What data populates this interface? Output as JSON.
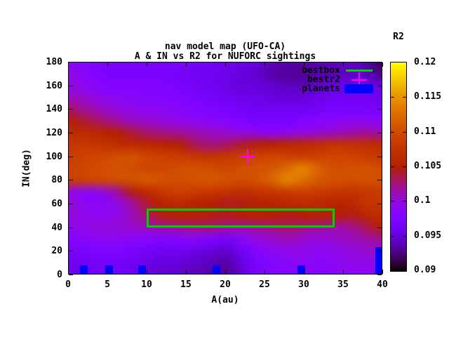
{
  "titles": {
    "line1": "nav model map (UFO-CA)",
    "line2": "A & IN vs R2 for NUFORC sightings"
  },
  "axes": {
    "x_label": "A(au)",
    "y_label": "IN(deg)",
    "x_range": [
      0,
      40
    ],
    "y_range": [
      0,
      180
    ],
    "x_ticks": [
      0,
      5,
      10,
      15,
      20,
      25,
      30,
      35,
      40
    ],
    "y_ticks": [
      0,
      20,
      40,
      60,
      80,
      100,
      120,
      140,
      160,
      180
    ]
  },
  "colorbar": {
    "title": "R2",
    "range": [
      0.09,
      0.12
    ],
    "tick_labels": [
      "0.12",
      "0.115",
      "0.11",
      "0.105",
      "0.1",
      "0.095",
      "0.09"
    ],
    "tick_values": [
      0.12,
      0.115,
      0.11,
      0.105,
      0.1,
      0.095,
      0.09
    ]
  },
  "legend": {
    "items": [
      {
        "label": "bestbox",
        "type": "line",
        "color": "#00d000"
      },
      {
        "label": "bestr2",
        "type": "cross",
        "color": "#ff00ff"
      },
      {
        "label": "planets",
        "type": "box",
        "color": "#0000ff"
      }
    ]
  },
  "overlays": {
    "bestbox": {
      "a_min": 10.0,
      "a_max": 33.9,
      "in_min": 40.0,
      "in_max": 56.0,
      "color": "#00d000"
    },
    "bestr2": {
      "a": 22.9,
      "in": 100.0,
      "color": "#ff00ff"
    },
    "planets": {
      "color": "#0000ff",
      "items": [
        {
          "a_min": 1.5,
          "a_max": 2.5,
          "in_max": 8
        },
        {
          "a_min": 4.7,
          "a_max": 5.7,
          "in_max": 8
        },
        {
          "a_min": 8.9,
          "a_max": 9.9,
          "in_max": 8
        },
        {
          "a_min": 18.4,
          "a_max": 19.4,
          "in_max": 8
        },
        {
          "a_min": 29.2,
          "a_max": 30.2,
          "in_max": 8
        },
        {
          "a_min": 39.1,
          "a_max": 40.0,
          "in_max": 23
        }
      ]
    }
  },
  "chart_data": {
    "type": "heatmap",
    "title": "nav model map (UFO-CA)",
    "subtitle": "A & IN vs R2 for NUFORC sightings",
    "xlabel": "A(au)",
    "ylabel": "IN(deg)",
    "zlabel": "R2",
    "x_range": [
      0,
      40
    ],
    "y_range": [
      0,
      180
    ],
    "z_range": [
      0.09,
      0.12
    ],
    "grid_on": false,
    "legend_position": "top-right-inside",
    "palette": "gnuplot default pm3d (rgbformulae 7,5,15): black -> violet -> magenta -> red -> orange -> yellow",
    "palette_anchors": [
      "#000000",
      "#5a00b4",
      "#8004ff",
      "#9c0db4",
      "#b42000",
      "#ca3e00",
      "#dd6b00",
      "#efab00",
      "#ffff00"
    ],
    "annotations": {
      "bestbox_rect": {
        "a": [
          10.0,
          33.9
        ],
        "in": [
          40.0,
          56.0
        ]
      },
      "bestr2_point": {
        "a": 22.9,
        "in": 100.0
      },
      "planet_boxes_a_centers": [
        2.0,
        5.2,
        9.4,
        18.9,
        29.7,
        39.5
      ]
    },
    "grid": {
      "x": [
        0,
        2,
        4,
        6,
        8,
        10,
        12,
        14,
        16,
        18,
        20,
        22,
        24,
        26,
        28,
        30,
        32,
        34,
        36,
        38,
        40
      ],
      "y_top_to_bottom": [
        180,
        170,
        160,
        150,
        140,
        130,
        120,
        110,
        100,
        90,
        80,
        70,
        60,
        50,
        40,
        30,
        20,
        10,
        0
      ],
      "r2_values_rows_top_to_bottom": [
        [
          0.099,
          0.098,
          0.097,
          0.097,
          0.097,
          0.097,
          0.097,
          0.097,
          0.0965,
          0.096,
          0.096,
          0.0955,
          0.095,
          0.094,
          0.0935,
          0.0935,
          0.094,
          0.094,
          0.0945,
          0.0935,
          0.0915
        ],
        [
          0.0995,
          0.0985,
          0.0975,
          0.097,
          0.097,
          0.097,
          0.097,
          0.0965,
          0.096,
          0.096,
          0.0955,
          0.095,
          0.0945,
          0.0935,
          0.093,
          0.093,
          0.0935,
          0.094,
          0.094,
          0.094,
          0.0925
        ],
        [
          0.1,
          0.099,
          0.098,
          0.0975,
          0.0975,
          0.0975,
          0.0975,
          0.097,
          0.0965,
          0.096,
          0.0955,
          0.095,
          0.095,
          0.0945,
          0.094,
          0.094,
          0.0945,
          0.095,
          0.0955,
          0.0955,
          0.095
        ],
        [
          0.101,
          0.1005,
          0.0995,
          0.099,
          0.0985,
          0.098,
          0.098,
          0.0975,
          0.097,
          0.0965,
          0.096,
          0.0955,
          0.0955,
          0.095,
          0.095,
          0.095,
          0.0955,
          0.096,
          0.096,
          0.096,
          0.0955
        ],
        [
          0.103,
          0.102,
          0.101,
          0.1,
          0.0995,
          0.099,
          0.099,
          0.0985,
          0.098,
          0.0975,
          0.097,
          0.0965,
          0.096,
          0.096,
          0.096,
          0.096,
          0.0965,
          0.097,
          0.097,
          0.097,
          0.0965
        ],
        [
          0.105,
          0.104,
          0.103,
          0.102,
          0.101,
          0.1005,
          0.1,
          0.0995,
          0.099,
          0.0985,
          0.098,
          0.0975,
          0.097,
          0.097,
          0.097,
          0.0975,
          0.098,
          0.0985,
          0.099,
          0.099,
          0.0985
        ],
        [
          0.107,
          0.1065,
          0.106,
          0.105,
          0.104,
          0.103,
          0.1025,
          0.102,
          0.1015,
          0.101,
          0.1005,
          0.1,
          0.0995,
          0.099,
          0.0995,
          0.1,
          0.1005,
          0.101,
          0.1015,
          0.102,
          0.1015
        ],
        [
          0.108,
          0.108,
          0.1075,
          0.107,
          0.1065,
          0.106,
          0.1055,
          0.105,
          0.1035,
          0.1025,
          0.103,
          0.104,
          0.105,
          0.1055,
          0.106,
          0.1065,
          0.107,
          0.1075,
          0.1075,
          0.107,
          0.1065
        ],
        [
          0.1085,
          0.109,
          0.1095,
          0.11,
          0.1105,
          0.1095,
          0.109,
          0.1085,
          0.108,
          0.1075,
          0.108,
          0.1085,
          0.109,
          0.1095,
          0.109,
          0.1085,
          0.109,
          0.1095,
          0.109,
          0.1085,
          0.108
        ],
        [
          0.109,
          0.1095,
          0.11,
          0.1105,
          0.11,
          0.1095,
          0.1095,
          0.11,
          0.1105,
          0.11,
          0.1095,
          0.11,
          0.1105,
          0.111,
          0.1125,
          0.114,
          0.1115,
          0.11,
          0.1105,
          0.1105,
          0.11
        ],
        [
          0.1085,
          0.109,
          0.1095,
          0.11,
          0.1105,
          0.111,
          0.1105,
          0.11,
          0.1105,
          0.111,
          0.1105,
          0.11,
          0.1105,
          0.112,
          0.114,
          0.1125,
          0.111,
          0.1105,
          0.11,
          0.1105,
          0.11
        ],
        [
          0.1,
          0.099,
          0.0995,
          0.1015,
          0.1045,
          0.1065,
          0.108,
          0.109,
          0.1085,
          0.108,
          0.1075,
          0.107,
          0.1075,
          0.108,
          0.1085,
          0.109,
          0.1085,
          0.108,
          0.1075,
          0.108,
          0.1085
        ],
        [
          0.1005,
          0.099,
          0.0985,
          0.0995,
          0.1015,
          0.104,
          0.1055,
          0.106,
          0.1055,
          0.105,
          0.1045,
          0.1045,
          0.105,
          0.1055,
          0.106,
          0.1065,
          0.106,
          0.1055,
          0.106,
          0.1075,
          0.108
        ],
        [
          0.1,
          0.0995,
          0.099,
          0.0995,
          0.101,
          0.103,
          0.1048,
          0.1055,
          0.1052,
          0.1048,
          0.1045,
          0.105,
          0.1055,
          0.105,
          0.1045,
          0.105,
          0.1055,
          0.105,
          0.1045,
          0.106,
          0.107
        ],
        [
          0.0995,
          0.0995,
          0.1,
          0.1,
          0.1005,
          0.101,
          0.1015,
          0.102,
          0.1025,
          0.1025,
          0.102,
          0.1015,
          0.102,
          0.1025,
          0.103,
          0.1025,
          0.102,
          0.1015,
          0.102,
          0.1035,
          0.105
        ],
        [
          0.098,
          0.0985,
          0.099,
          0.099,
          0.0985,
          0.098,
          0.0975,
          0.098,
          0.0985,
          0.0975,
          0.0965,
          0.0985,
          0.1,
          0.1005,
          0.101,
          0.1005,
          0.1,
          0.1005,
          0.101,
          0.1015,
          0.102
        ],
        [
          0.0965,
          0.097,
          0.0975,
          0.0975,
          0.097,
          0.0965,
          0.096,
          0.096,
          0.0955,
          0.095,
          0.0945,
          0.096,
          0.098,
          0.099,
          0.0995,
          0.0995,
          0.099,
          0.0995,
          0.1,
          0.1005,
          0.101
        ],
        [
          0.096,
          0.096,
          0.0965,
          0.0965,
          0.096,
          0.0955,
          0.095,
          0.095,
          0.0945,
          0.094,
          0.0935,
          0.095,
          0.097,
          0.098,
          0.0985,
          0.099,
          0.0985,
          0.099,
          0.0995,
          0.0995,
          0.0995
        ],
        [
          0.0955,
          0.0955,
          0.096,
          0.096,
          0.0955,
          0.095,
          0.0945,
          0.0945,
          0.094,
          0.0935,
          0.093,
          0.0945,
          0.0965,
          0.0975,
          0.098,
          0.0985,
          0.098,
          0.0985,
          0.099,
          0.099,
          0.099
        ]
      ]
    }
  }
}
